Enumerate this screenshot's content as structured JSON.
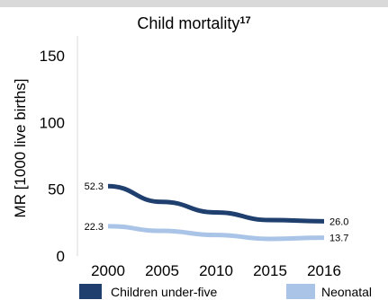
{
  "chart_data": {
    "type": "line",
    "title": "Child mortality",
    "title_superscript": "17",
    "ylabel": "MR [1000 live births]",
    "xlabel": "",
    "categories": [
      "2000",
      "2005",
      "2010",
      "2015",
      "2016"
    ],
    "yticks": [
      0,
      50,
      100,
      150
    ],
    "ylim": [
      0,
      150
    ],
    "grid": false,
    "legend_position": "bottom",
    "series": [
      {
        "name": "Children under-five",
        "color": "#1f3f6e",
        "values": [
          52.3,
          40.5,
          32.6,
          26.9,
          26.0
        ]
      },
      {
        "name": "Neonatal",
        "color": "#a9c4e6",
        "values": [
          22.3,
          18.8,
          15.7,
          12.8,
          13.7
        ]
      }
    ],
    "data_labels": [
      {
        "series": 0,
        "index": 0,
        "text": "52.3"
      },
      {
        "series": 0,
        "index": 4,
        "text": "26.0"
      },
      {
        "series": 1,
        "index": 0,
        "text": "22.3"
      },
      {
        "series": 1,
        "index": 4,
        "text": "13.7"
      }
    ]
  }
}
